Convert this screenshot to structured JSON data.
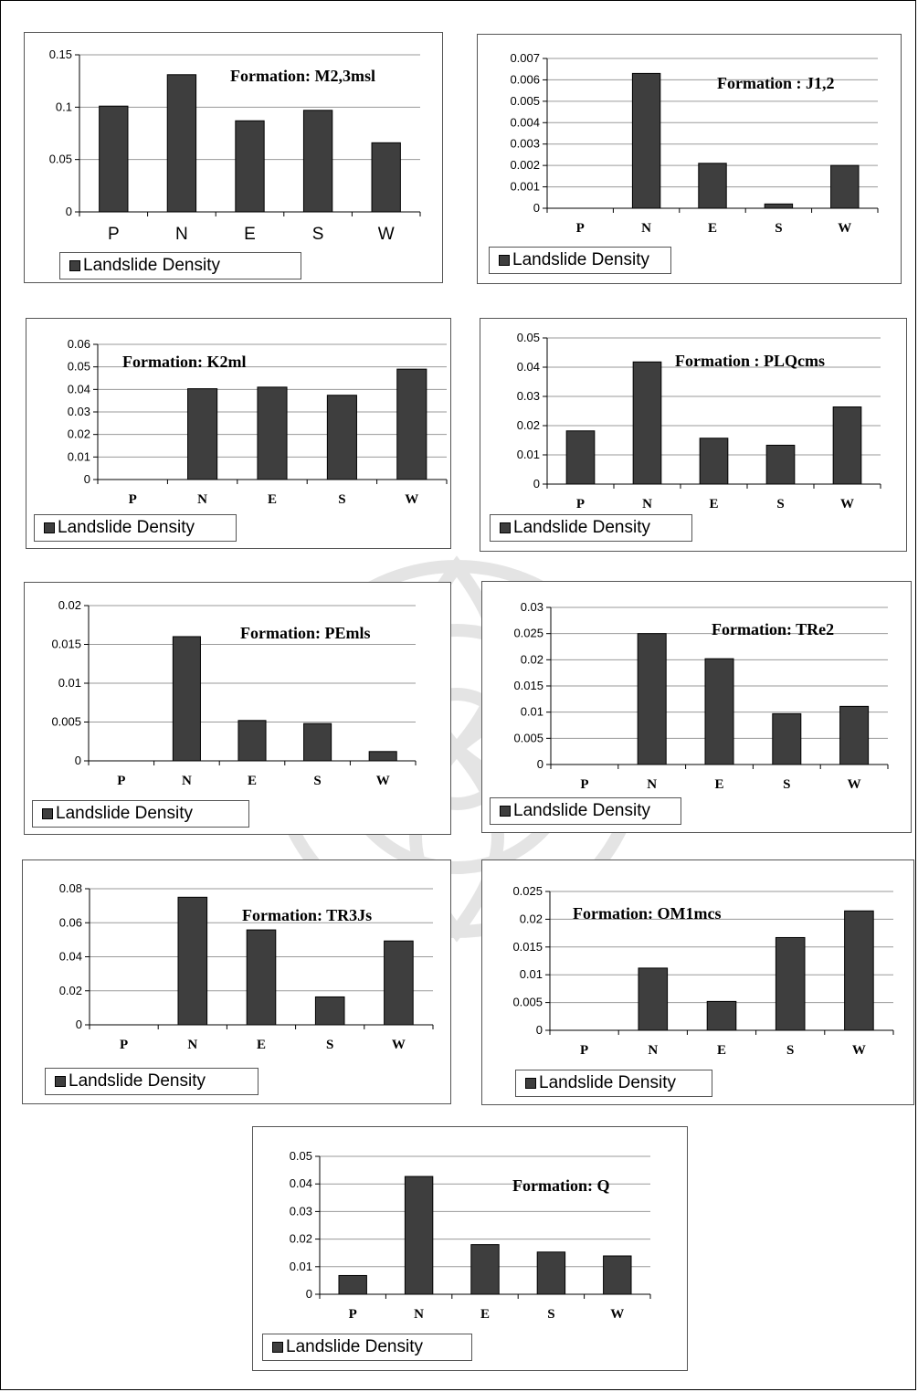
{
  "legend_label": "Landslide Density",
  "bar_color": "#3e3e3e",
  "chart_data": [
    {
      "type": "bar",
      "title": "Formation: M2,3msl",
      "categories": [
        "P",
        "N",
        "E",
        "S",
        "W"
      ],
      "series": [
        {
          "name": "Landslide Density",
          "values": [
            0.101,
            0.131,
            0.087,
            0.097,
            0.066
          ]
        }
      ],
      "ylim": [
        0,
        0.15
      ],
      "yticks": [
        "0",
        "0.05",
        "0.1",
        "0.15"
      ],
      "grid": true,
      "legend_position": "bottom"
    },
    {
      "type": "bar",
      "title": "Formation : J1,2",
      "categories": [
        "P",
        "N",
        "E",
        "S",
        "W"
      ],
      "series": [
        {
          "name": "Landslide Density",
          "values": [
            0,
            0.0063,
            0.0021,
            0.0002,
            0.002
          ]
        }
      ],
      "ylim": [
        0,
        0.007
      ],
      "yticks": [
        "0",
        "0.001",
        "0.002",
        "0.003",
        "0.004",
        "0.005",
        "0.006",
        "0.007"
      ],
      "grid": true,
      "legend_position": "bottom"
    },
    {
      "type": "bar",
      "title": "Formation: K2ml",
      "categories": [
        "P",
        "N",
        "E",
        "S",
        "W"
      ],
      "series": [
        {
          "name": "Landslide Density",
          "values": [
            0,
            0.0403,
            0.041,
            0.0374,
            0.049
          ]
        }
      ],
      "ylim": [
        0,
        0.06
      ],
      "yticks": [
        "0",
        "0.01",
        "0.02",
        "0.03",
        "0.04",
        "0.05",
        "0.06"
      ],
      "grid": true,
      "legend_position": "bottom"
    },
    {
      "type": "bar",
      "title": "Formation : PLQcms",
      "categories": [
        "P",
        "N",
        "E",
        "S",
        "W"
      ],
      "series": [
        {
          "name": "Landslide Density",
          "values": [
            0.0182,
            0.0418,
            0.0157,
            0.0133,
            0.0264
          ]
        }
      ],
      "ylim": [
        0,
        0.05
      ],
      "yticks": [
        "0",
        "0.01",
        "0.02",
        "0.03",
        "0.04",
        "0.05"
      ],
      "grid": true,
      "legend_position": "bottom"
    },
    {
      "type": "bar",
      "title": "Formation: PEmls",
      "categories": [
        "P",
        "N",
        "E",
        "S",
        "W"
      ],
      "series": [
        {
          "name": "Landslide Density",
          "values": [
            0,
            0.016,
            0.0052,
            0.0048,
            0.0012
          ]
        }
      ],
      "ylim": [
        0,
        0.02
      ],
      "yticks": [
        "0",
        "0.005",
        "0.01",
        "0.015",
        "0.02"
      ],
      "grid": true,
      "legend_position": "bottom"
    },
    {
      "type": "bar",
      "title": "Formation: TRe2",
      "categories": [
        "P",
        "N",
        "E",
        "S",
        "W"
      ],
      "series": [
        {
          "name": "Landslide Density",
          "values": [
            0,
            0.025,
            0.0202,
            0.0097,
            0.0111
          ]
        }
      ],
      "ylim": [
        0,
        0.03
      ],
      "yticks": [
        "0",
        "0.005",
        "0.01",
        "0.015",
        "0.02",
        "0.025",
        "0.03"
      ],
      "grid": true,
      "legend_position": "bottom"
    },
    {
      "type": "bar",
      "title": "Formation: TR3Js",
      "categories": [
        "P",
        "N",
        "E",
        "S",
        "W"
      ],
      "series": [
        {
          "name": "Landslide Density",
          "values": [
            0,
            0.075,
            0.0558,
            0.0164,
            0.0493
          ]
        }
      ],
      "ylim": [
        0,
        0.08
      ],
      "yticks": [
        "0",
        "0.02",
        "0.04",
        "0.06",
        "0.08"
      ],
      "grid": true,
      "legend_position": "bottom"
    },
    {
      "type": "bar",
      "title": "Formation: OM1mcs",
      "categories": [
        "P",
        "N",
        "E",
        "S",
        "W"
      ],
      "series": [
        {
          "name": "Landslide Density",
          "values": [
            0,
            0.0112,
            0.0052,
            0.0167,
            0.0215
          ]
        }
      ],
      "ylim": [
        0,
        0.025
      ],
      "yticks": [
        "0",
        "0.005",
        "0.01",
        "0.015",
        "0.02",
        "0.025"
      ],
      "grid": true,
      "legend_position": "bottom"
    },
    {
      "type": "bar",
      "title": "Formation: Q",
      "categories": [
        "P",
        "N",
        "E",
        "S",
        "W"
      ],
      "series": [
        {
          "name": "Landslide Density",
          "values": [
            0.0068,
            0.0427,
            0.018,
            0.0153,
            0.0139
          ]
        }
      ],
      "ylim": [
        0,
        0.05
      ],
      "yticks": [
        "0",
        "0.01",
        "0.02",
        "0.03",
        "0.04",
        "0.05"
      ],
      "grid": true,
      "legend_position": "bottom"
    }
  ]
}
